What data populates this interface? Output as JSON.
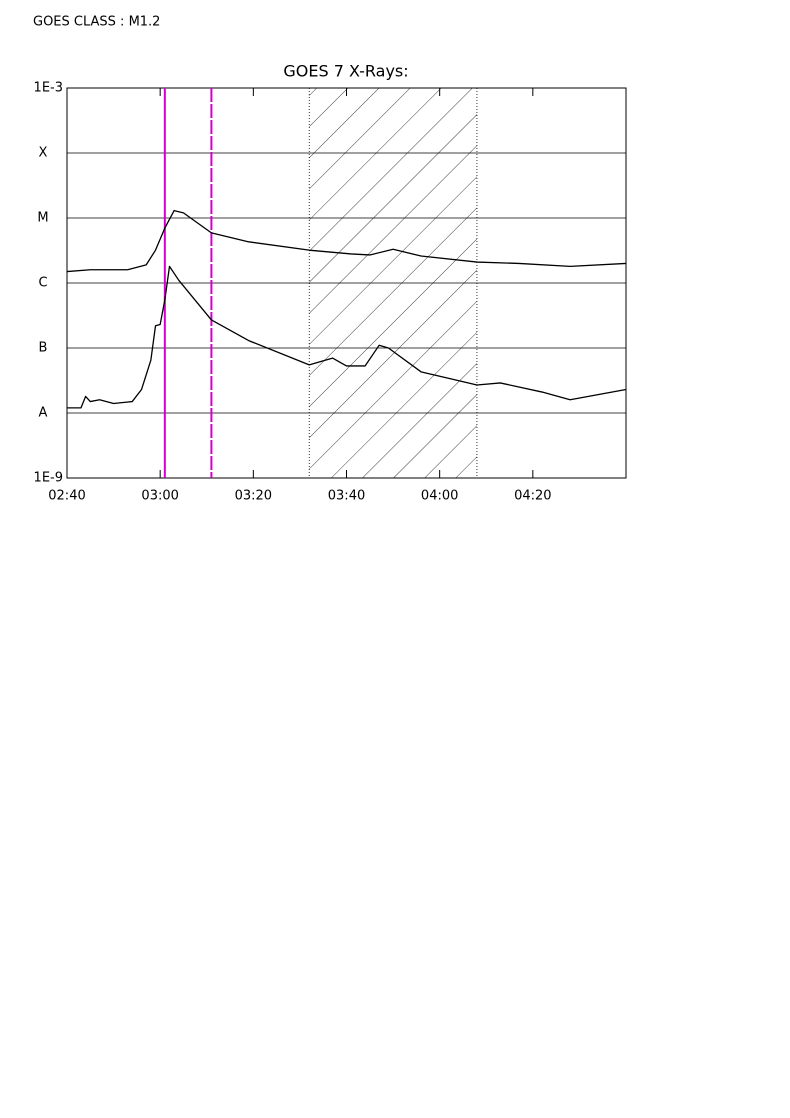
{
  "header": "GOES CLASS : M1.2",
  "chart_data": {
    "type": "line",
    "title": "GOES 7 X-Rays:",
    "log_y": true,
    "xlim": [
      "02:40",
      "04:40"
    ],
    "xticks": [
      "02:40",
      "03:00",
      "03:20",
      "03:40",
      "04:00",
      "04:20"
    ],
    "ylim": [
      1e-09,
      0.001
    ],
    "yticks": [
      {
        "value": 1e-09,
        "label": "1E-9"
      },
      {
        "value": 1e-08,
        "label": "A"
      },
      {
        "value": 1e-07,
        "label": "B"
      },
      {
        "value": 1e-06,
        "label": "C"
      },
      {
        "value": 1e-05,
        "label": "M"
      },
      {
        "value": 0.0001,
        "label": "X"
      },
      {
        "value": 0.001,
        "label": "1E-3"
      }
    ],
    "grid": true,
    "series": [
      {
        "color": "#000000",
        "x": [
          "02:40",
          "02:45",
          "02:53",
          "02:57",
          "02:59",
          "03:01",
          "03:03",
          "03:05",
          "03:11",
          "03:19",
          "03:32",
          "03:41",
          "03:45",
          "03:50",
          "03:56",
          "04:08",
          "04:17",
          "04:28",
          "04:40"
        ],
        "values": [
          1.5e-06,
          1.6e-06,
          1.6e-06,
          1.9e-06,
          3.2e-06,
          7e-06,
          1.3e-05,
          1.2e-05,
          5.9e-06,
          4.3e-06,
          3.2e-06,
          2.8e-06,
          2.7e-06,
          3.3e-06,
          2.6e-06,
          2.1e-06,
          2e-06,
          1.8e-06,
          2e-06
        ]
      },
      {
        "color": "#000000",
        "x": [
          "02:40",
          "02:43",
          "02:44",
          "02:45",
          "02:47",
          "02:50",
          "02:54",
          "02:56",
          "02:58",
          "02:59",
          "03:00",
          "03:01",
          "03:02",
          "03:04",
          "03:11",
          "03:19",
          "03:32",
          "03:37",
          "03:40",
          "03:44",
          "03:47",
          "03:49",
          "03:56",
          "04:08",
          "04:13",
          "04:22",
          "04:28",
          "04:40"
        ],
        "values": [
          1.2e-08,
          1.2e-08,
          1.8e-08,
          1.5e-08,
          1.6e-08,
          1.4e-08,
          1.5e-08,
          2.3e-08,
          6.5e-08,
          2.2e-07,
          2.3e-07,
          5.5e-07,
          1.8e-06,
          1.1e-06,
          2.7e-07,
          1.3e-07,
          5.5e-08,
          7e-08,
          5.3e-08,
          5.3e-08,
          1.1e-07,
          1e-07,
          4.3e-08,
          2.7e-08,
          2.9e-08,
          2.1e-08,
          1.6e-08,
          2.3e-08
        ]
      }
    ],
    "markers": [
      {
        "x": "03:01",
        "color": "#d000d0",
        "dash": "none"
      },
      {
        "x": "03:11",
        "color": "#d000d0",
        "dash": "14 2"
      }
    ],
    "shaded_region": [
      "03:32",
      "04:08"
    ]
  }
}
